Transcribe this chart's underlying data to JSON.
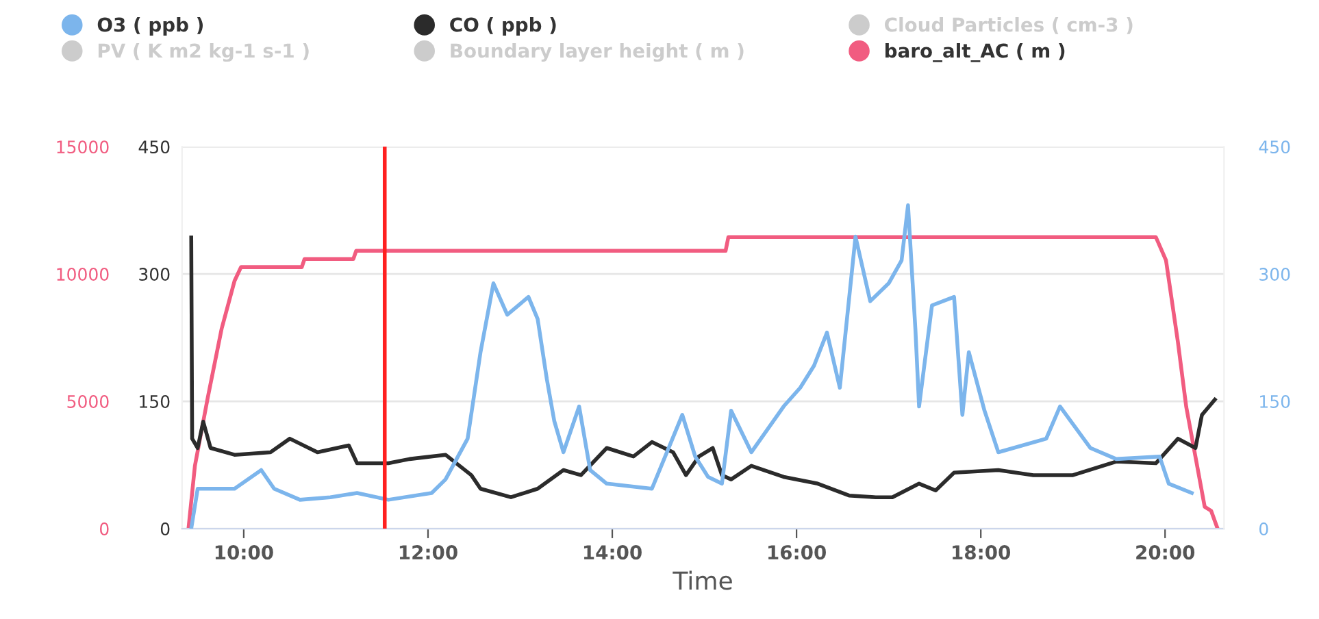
{
  "chart_data": {
    "type": "line",
    "xlabel": "Time",
    "legend": "top",
    "grid": "y",
    "marker": "none",
    "line_style": "solid",
    "xlim": [
      9.33,
      20.64
    ],
    "xticks": [
      {
        "value": 10,
        "label": "10:00"
      },
      {
        "value": 12,
        "label": "12:00"
      },
      {
        "value": 14,
        "label": "14:00"
      },
      {
        "value": 16,
        "label": "16:00"
      },
      {
        "value": 18,
        "label": "18:00"
      },
      {
        "value": 20,
        "label": "20:00"
      }
    ],
    "ylim": [
      0,
      15000
    ],
    "yticks": [
      0,
      5000,
      10000,
      15000
    ],
    "y2lim": [
      0,
      450
    ],
    "y2ticks": [
      0,
      150,
      300,
      450
    ],
    "y3lim": [
      0,
      450
    ],
    "y3ticks": [
      0,
      150,
      300,
      450
    ],
    "ref_lines": [
      {
        "axis": "x",
        "value": 11.53,
        "color": "#ff2020"
      }
    ],
    "series": [
      {
        "name": "O3 ( ppb )",
        "color": "#7cb5ec",
        "axis": "y3",
        "x": [
          9.43,
          9.5,
          9.9,
          10.19,
          10.33,
          10.61,
          10.94,
          11.23,
          11.57,
          12.04,
          12.19,
          12.43,
          12.57,
          12.71,
          12.86,
          13.09,
          13.19,
          13.29,
          13.37,
          13.47,
          13.64,
          13.76,
          13.94,
          14.43,
          14.76,
          14.9,
          15.04,
          15.19,
          15.29,
          15.51,
          15.86,
          16.04,
          16.19,
          16.33,
          16.47,
          16.64,
          16.8,
          17.0,
          17.14,
          17.21,
          17.29,
          17.33,
          17.47,
          17.71,
          17.8,
          17.87,
          18.04,
          18.19,
          18.71,
          18.86,
          19.19,
          19.47,
          19.94,
          20.04,
          20.29
        ],
        "values": [
          0,
          47,
          47,
          69,
          47,
          34,
          37,
          42,
          34,
          42,
          58,
          106,
          208,
          289,
          252,
          273,
          247,
          176,
          127,
          90,
          144,
          69,
          53,
          47,
          134,
          85,
          61,
          53,
          139,
          90,
          144,
          166,
          192,
          231,
          166,
          344,
          268,
          289,
          316,
          381,
          235,
          144,
          263,
          273,
          134,
          208,
          139,
          90,
          106,
          144,
          95,
          82,
          85,
          53,
          42
        ]
      },
      {
        "name": "CO ( ppb )",
        "color": "#2b2b2b",
        "axis": "y2",
        "x": [
          9.43,
          9.44,
          9.5,
          9.56,
          9.64,
          9.9,
          10.29,
          10.5,
          10.8,
          11.14,
          11.23,
          11.57,
          11.8,
          12.19,
          12.47,
          12.57,
          12.9,
          13.19,
          13.47,
          13.66,
          13.94,
          14.23,
          14.43,
          14.66,
          14.8,
          14.94,
          15.09,
          15.19,
          15.29,
          15.51,
          15.86,
          16.23,
          16.57,
          16.86,
          17.04,
          17.33,
          17.51,
          17.71,
          18.19,
          18.57,
          19.0,
          19.47,
          19.9,
          20.14,
          20.33,
          20.4,
          20.54
        ],
        "values": [
          343,
          106,
          95,
          126,
          95,
          87,
          90,
          106,
          90,
          98,
          77,
          77,
          82,
          87,
          63,
          47,
          37,
          47,
          69,
          63,
          95,
          85,
          102,
          90,
          63,
          85,
          95,
          63,
          58,
          74,
          61,
          53,
          39,
          37,
          37,
          53,
          45,
          66,
          69,
          63,
          63,
          79,
          77,
          106,
          95,
          134,
          152
        ]
      },
      {
        "name": "Cloud Particles ( cm-3 )",
        "color": "#cccccc",
        "axis": "y2"
      },
      {
        "name": "PV ( K m2 kg-1 s-1 )",
        "color": "#cccccc",
        "axis": "y2"
      },
      {
        "name": "Boundary layer height ( m )",
        "color": "#cccccc",
        "axis": "y"
      },
      {
        "name": "baro_alt_AC ( m )",
        "color": "#f15c80",
        "axis": "y",
        "x": [
          9.4,
          9.47,
          9.61,
          9.76,
          9.9,
          9.97,
          10.63,
          10.66,
          11.19,
          11.22,
          15.23,
          15.26,
          19.9,
          20.01,
          20.14,
          20.23,
          20.43,
          20.5,
          20.57
        ],
        "values": [
          0,
          2470,
          5160,
          7850,
          9730,
          10270,
          10270,
          10590,
          10590,
          10910,
          10910,
          11450,
          11450,
          10540,
          7310,
          4780,
          860,
          700,
          0
        ]
      }
    ]
  }
}
